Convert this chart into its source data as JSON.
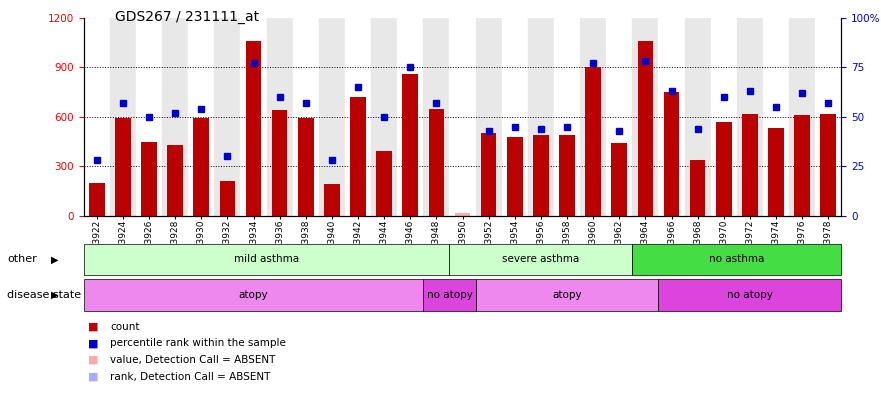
{
  "title": "GDS267 / 231111_at",
  "samples": [
    "GSM3922",
    "GSM3924",
    "GSM3926",
    "GSM3928",
    "GSM3930",
    "GSM3932",
    "GSM3934",
    "GSM3936",
    "GSM3938",
    "GSM3940",
    "GSM3942",
    "GSM3944",
    "GSM3946",
    "GSM3948",
    "GSM3950",
    "GSM3952",
    "GSM3954",
    "GSM3956",
    "GSM3958",
    "GSM3960",
    "GSM3962",
    "GSM3964",
    "GSM3966",
    "GSM3968",
    "GSM3970",
    "GSM3972",
    "GSM3974",
    "GSM3976",
    "GSM3978"
  ],
  "counts": [
    200,
    590,
    450,
    430,
    590,
    210,
    1060,
    640,
    590,
    190,
    720,
    390,
    860,
    650,
    20,
    500,
    480,
    490,
    490,
    900,
    440,
    1060,
    750,
    340,
    570,
    620,
    530,
    610,
    620
  ],
  "percentile_ranks": [
    28,
    57,
    50,
    52,
    54,
    30,
    77,
    60,
    57,
    28,
    65,
    50,
    75,
    57,
    null,
    43,
    45,
    44,
    45,
    77,
    43,
    78,
    63,
    44,
    60,
    63,
    55,
    62,
    57
  ],
  "absent_flags": [
    false,
    false,
    false,
    false,
    false,
    false,
    false,
    false,
    false,
    false,
    false,
    false,
    false,
    false,
    true,
    false,
    false,
    false,
    false,
    false,
    false,
    false,
    false,
    false,
    false,
    false,
    false,
    false,
    false
  ],
  "absent_rank_flags": [
    false,
    false,
    false,
    false,
    false,
    false,
    false,
    false,
    false,
    false,
    false,
    false,
    false,
    false,
    true,
    false,
    false,
    false,
    false,
    false,
    false,
    false,
    false,
    false,
    false,
    false,
    false,
    false,
    false
  ],
  "ylim_left": [
    0,
    1200
  ],
  "ylim_right": [
    0,
    100
  ],
  "yticks_left": [
    0,
    300,
    600,
    900,
    1200
  ],
  "yticks_right": [
    0,
    25,
    50,
    75,
    100
  ],
  "ytick_labels_right": [
    "0",
    "25",
    "50",
    "75",
    "100%"
  ],
  "bar_color": "#bb0000",
  "dot_color": "#0000cc",
  "absent_bar_color": "#ffaaaa",
  "absent_dot_color": "#aaaaff",
  "bg_color": "#ffffff",
  "other_groups": [
    {
      "label": "mild asthma",
      "start": 0,
      "end": 14,
      "color": "#ccffcc"
    },
    {
      "label": "severe asthma",
      "start": 14,
      "end": 21,
      "color": "#ccffcc"
    },
    {
      "label": "no asthma",
      "start": 21,
      "end": 29,
      "color": "#44dd44"
    }
  ],
  "disease_groups": [
    {
      "label": "atopy",
      "start": 0,
      "end": 13,
      "color": "#ee88ee"
    },
    {
      "label": "no atopy",
      "start": 13,
      "end": 15,
      "color": "#dd44dd"
    },
    {
      "label": "atopy",
      "start": 15,
      "end": 22,
      "color": "#ee88ee"
    },
    {
      "label": "no atopy",
      "start": 22,
      "end": 29,
      "color": "#dd44dd"
    }
  ],
  "legend_items": [
    {
      "label": "count",
      "color": "#bb0000"
    },
    {
      "label": "percentile rank within the sample",
      "color": "#0000cc"
    },
    {
      "label": "value, Detection Call = ABSENT",
      "color": "#ffaaaa"
    },
    {
      "label": "rank, Detection Call = ABSENT",
      "color": "#aaaaff"
    }
  ],
  "other_label": "other",
  "disease_label": "disease state"
}
